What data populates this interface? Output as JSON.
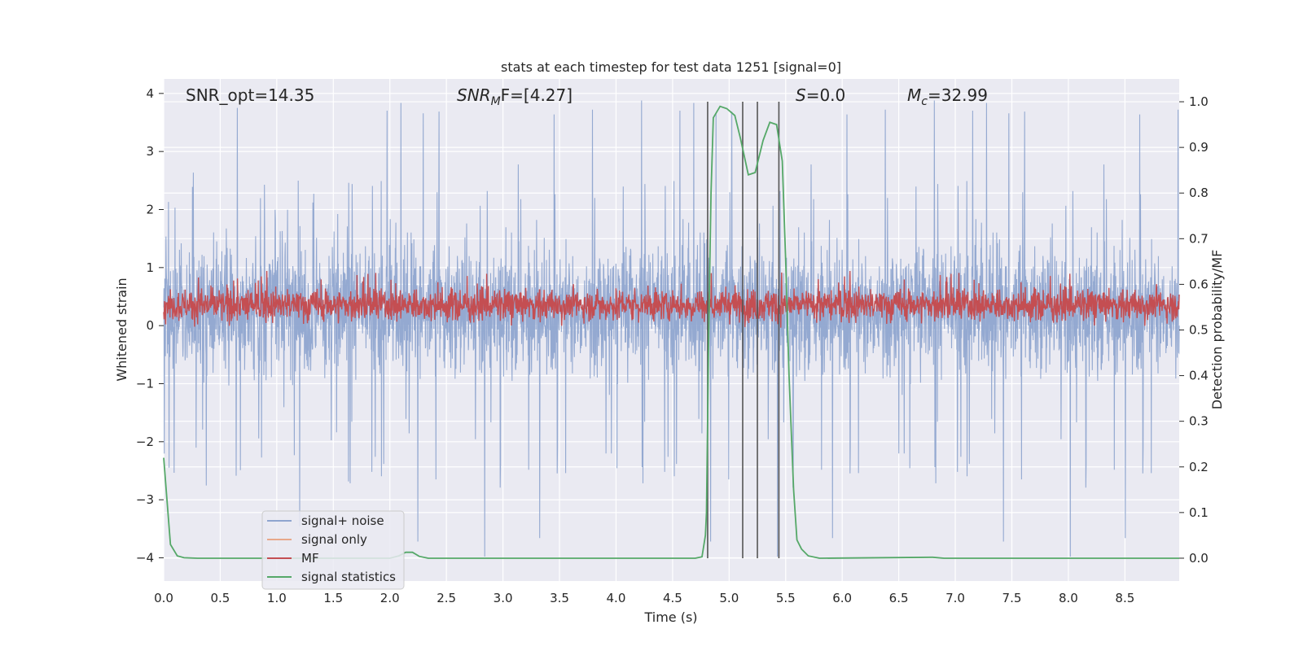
{
  "chart_data": {
    "type": "line",
    "title": "stats at each timestep for test data 1251 [signal=0]",
    "xlabel": "Time (s)",
    "ylabel_left": "Whitened strain",
    "ylabel_right": "Detection probability/MF",
    "xlim": [
      0.0,
      8.98
    ],
    "ylim_left": [
      -4.4,
      4.25
    ],
    "ylim_right": [
      -0.05,
      1.05
    ],
    "x_ticks": [
      "0.0",
      "0.5",
      "1.0",
      "1.5",
      "2.0",
      "2.5",
      "3.0",
      "3.5",
      "4.0",
      "4.5",
      "5.0",
      "5.5",
      "6.0",
      "6.5",
      "7.0",
      "7.5",
      "8.0",
      "8.5"
    ],
    "y_left_ticks": [
      "4",
      "3",
      "2",
      "1",
      "0",
      "−1",
      "−2",
      "−3",
      "−4"
    ],
    "y_right_ticks": [
      "1.0",
      "0.9",
      "0.8",
      "0.7",
      "0.6",
      "0.5",
      "0.4",
      "0.3",
      "0.2",
      "0.1",
      "0.0"
    ],
    "grid": true,
    "background": "#eaeaf2",
    "annotations": {
      "snr_opt": "SNR_opt=14.35",
      "snr_mf_sym": "SNR",
      "snr_mf_sub": "M",
      "snr_mf_rest": "F=[4.27]",
      "s_sym": "S",
      "s_rest": "=0.0",
      "mc_sym": "M",
      "mc_sub": "c",
      "mc_rest": "=32.99"
    },
    "vertical_markers": [
      4.81,
      5.12,
      5.25,
      5.44
    ],
    "legend": {
      "position": "lower-left",
      "items": [
        {
          "label": "signal+ noise",
          "color": "#8fa5cf"
        },
        {
          "label": "signal only",
          "color": "#e8a88a"
        },
        {
          "label": "MF",
          "color": "#c44e52"
        },
        {
          "label": "signal statistics",
          "color": "#55a868"
        }
      ]
    },
    "series": [
      {
        "name": "signal+ noise",
        "axis": "left",
        "color": "#8fa5cf",
        "style": "noise",
        "range_typical": [
          -1.8,
          2.4
        ],
        "peak_max": 3.9,
        "trough_min": -4.0
      },
      {
        "name": "signal only",
        "axis": "left",
        "color": "#e8a88a",
        "style": "flat",
        "values": []
      },
      {
        "name": "MF",
        "axis": "right",
        "color": "#c44e52",
        "style": "noise",
        "range_typical": [
          0.51,
          0.6
        ],
        "peak_max": 0.63
      },
      {
        "name": "signal statistics",
        "axis": "right",
        "color": "#55a868",
        "x": [
          0.0,
          0.06,
          0.12,
          0.18,
          0.3,
          2.0,
          2.08,
          2.14,
          2.2,
          2.26,
          2.34,
          4.7,
          4.76,
          4.79,
          4.8,
          4.82,
          4.84,
          4.86,
          4.92,
          4.98,
          5.05,
          5.1,
          5.17,
          5.23,
          5.3,
          5.36,
          5.42,
          5.47,
          5.5,
          5.53,
          5.57,
          5.6,
          5.64,
          5.7,
          5.8,
          6.8,
          6.9,
          8.98
        ],
        "values": [
          0.22,
          0.03,
          0.005,
          0.001,
          0.0,
          0.0,
          0.005,
          0.013,
          0.013,
          0.004,
          0.0,
          0.0,
          0.003,
          0.05,
          0.1,
          0.5,
          0.8,
          0.965,
          0.99,
          0.985,
          0.97,
          0.92,
          0.84,
          0.845,
          0.915,
          0.955,
          0.95,
          0.87,
          0.65,
          0.4,
          0.15,
          0.04,
          0.02,
          0.005,
          0.0,
          0.002,
          0.0,
          0.0
        ]
      }
    ]
  }
}
